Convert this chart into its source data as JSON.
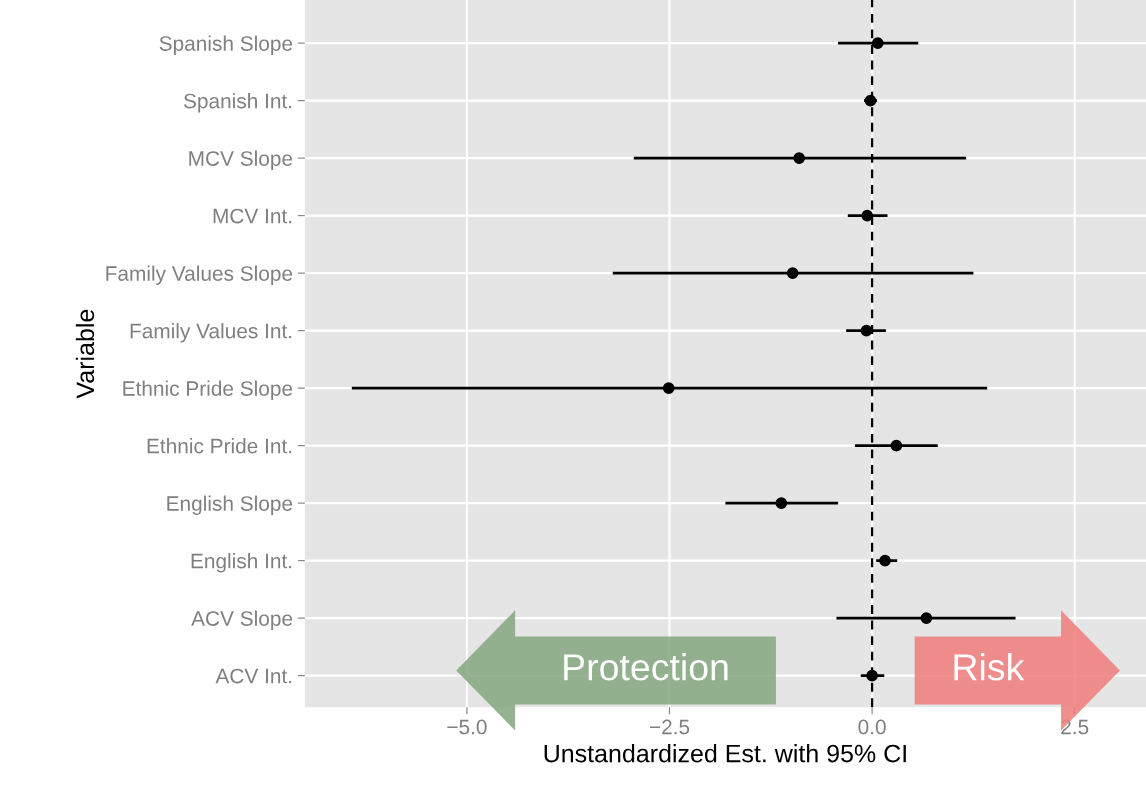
{
  "chart_data": {
    "type": "scatter",
    "orientation": "horizontal",
    "xlabel": "Unstandardized Est. with 95% CI",
    "ylabel": "Variable",
    "categories": [
      "Spanish Slope",
      "Spanish Int.",
      "MCV Slope",
      "MCV Int.",
      "Family Values Slope",
      "Family Values Int.",
      "Ethnic Pride Slope",
      "Ethnic Pride Int.",
      "English Slope",
      "English Int.",
      "ACV Slope",
      "ACV Int."
    ],
    "values": [
      0.07,
      -0.02,
      -0.9,
      -0.06,
      -0.98,
      -0.07,
      -2.51,
      0.3,
      -1.12,
      0.16,
      0.67,
      0.0
    ],
    "errors": [
      [
        -0.42,
        0.57
      ],
      [
        -0.1,
        0.06
      ],
      [
        -2.94,
        1.16
      ],
      [
        -0.3,
        0.19
      ],
      [
        -3.2,
        1.25
      ],
      [
        -0.32,
        0.17
      ],
      [
        -6.42,
        1.42
      ],
      [
        -0.21,
        0.81
      ],
      [
        -1.81,
        -0.42
      ],
      [
        0.05,
        0.31
      ],
      [
        -0.44,
        1.77
      ],
      [
        -0.14,
        0.15
      ]
    ],
    "color": "#000000",
    "marker": "circle",
    "xlim": [
      -7.0,
      3.38
    ],
    "xticks": [
      {
        "value": -5.0,
        "label": "−5.0"
      },
      {
        "value": -2.5,
        "label": "−2.5"
      },
      {
        "value": 0.0,
        "label": "0.0"
      },
      {
        "value": 2.5,
        "label": "2.5"
      }
    ],
    "ref_lines": [
      {
        "axis": "x",
        "value": 0,
        "color": "#000000",
        "line_style": "dashed"
      }
    ],
    "grid": true,
    "annotations": [
      "Protection",
      "Risk"
    ]
  }
}
